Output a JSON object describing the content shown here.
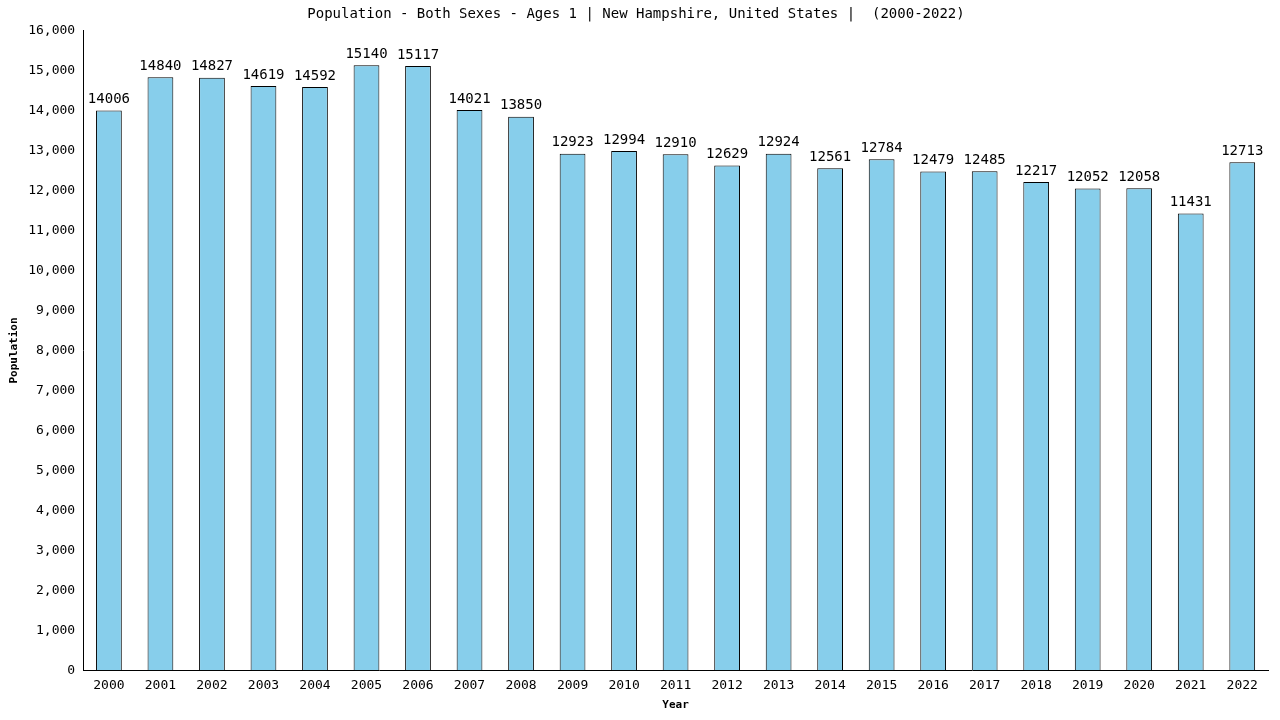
{
  "chart_data": {
    "type": "bar",
    "title": "Population - Both Sexes - Ages 1 | New Hampshire, United States |  (2000-2022)",
    "x_label": "Year",
    "y_label": "Population",
    "categories": [
      "2000",
      "2001",
      "2002",
      "2003",
      "2004",
      "2005",
      "2006",
      "2007",
      "2008",
      "2009",
      "2010",
      "2011",
      "2012",
      "2013",
      "2014",
      "2015",
      "2016",
      "2017",
      "2018",
      "2019",
      "2020",
      "2021",
      "2022"
    ],
    "values": [
      14006,
      14840,
      14827,
      14619,
      14592,
      15140,
      15117,
      14021,
      13850,
      12923,
      12994,
      12910,
      12629,
      12924,
      12561,
      12784,
      12479,
      12485,
      12217,
      12052,
      12058,
      11431,
      12713
    ],
    "color": "#87ceeb",
    "ylim": [
      0,
      16000
    ],
    "yticks": [
      0,
      1000,
      2000,
      3000,
      4000,
      5000,
      6000,
      7000,
      8000,
      9000,
      10000,
      11000,
      12000,
      13000,
      14000,
      15000,
      16000
    ],
    "grid": false,
    "data_labels": true
  }
}
